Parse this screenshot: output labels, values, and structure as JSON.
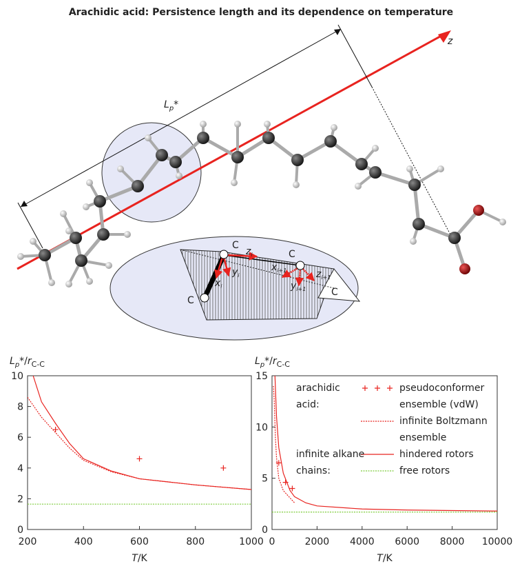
{
  "figure_title": "Arachidic acid: Persistence length and its dependence on temperature",
  "diagram": {
    "lp_label": [
      "L",
      "p",
      "*"
    ],
    "axis_label": "z",
    "atom_labels": [
      "C",
      "C",
      "C",
      "C"
    ],
    "frame_labels": [
      [
        "z",
        "i"
      ],
      [
        "y",
        "i"
      ],
      [
        "x",
        "i"
      ],
      [
        "x",
        "i+1"
      ],
      [
        "y",
        "i+1"
      ],
      [
        "z",
        "i+1"
      ]
    ]
  },
  "chart_data": [
    {
      "type": "line",
      "xlim": [
        200,
        1000
      ],
      "xticks": [
        200,
        400,
        600,
        800,
        1000
      ],
      "ylim": [
        0,
        10
      ],
      "yticks": [
        0,
        2,
        4,
        6,
        8,
        10
      ],
      "ylabel_parts": [
        "L",
        "p",
        "*/",
        "r",
        "C-C"
      ],
      "xlabel_parts": [
        "T",
        "/K"
      ],
      "series": [
        {
          "name": "pseudoconformer ensemble (vdW)",
          "color": "#e8231f",
          "style": "markers",
          "x": [
            300,
            600,
            900
          ],
          "values": [
            6.5,
            4.6,
            4.0
          ]
        },
        {
          "name": "infinite Boltzmann ensemble",
          "color": "#e8231f",
          "style": "dotted",
          "x": [
            200,
            250,
            300,
            350,
            400,
            500,
            600,
            700,
            800,
            900,
            1000
          ],
          "values": [
            8.6,
            7.3,
            6.3,
            5.3,
            4.5,
            3.75,
            3.3,
            3.1,
            2.9,
            2.75,
            2.6
          ]
        },
        {
          "name": "hindered rotors",
          "color": "#e8231f",
          "style": "solid",
          "x": [
            220,
            250,
            300,
            350,
            400,
            500,
            600,
            700,
            800,
            900,
            1000
          ],
          "values": [
            10,
            8.3,
            6.9,
            5.6,
            4.6,
            3.8,
            3.3,
            3.1,
            2.9,
            2.75,
            2.6
          ]
        },
        {
          "name": "free rotors",
          "color": "#7ccc3a",
          "style": "dotted",
          "x": [
            200,
            1000
          ],
          "values": [
            1.65,
            1.65
          ]
        }
      ]
    },
    {
      "type": "line",
      "xlim": [
        0,
        10000
      ],
      "xticks": [
        0,
        2000,
        4000,
        6000,
        8000,
        10000
      ],
      "ylim": [
        0,
        15
      ],
      "yticks": [
        0,
        5,
        10,
        15
      ],
      "ylabel_parts": [
        "L",
        "p",
        "*/",
        "r",
        "C-C"
      ],
      "xlabel_parts": [
        "T",
        "/K"
      ],
      "legend": "upper right",
      "legend_groups": [
        "arachidic acid:",
        "infinite alkane chains:"
      ],
      "series": [
        {
          "name": "pseudoconformer ensemble (vdW)",
          "color": "#e8231f",
          "style": "markers",
          "x": [
            300,
            600,
            900
          ],
          "values": [
            6.5,
            4.6,
            4.0
          ]
        },
        {
          "name": "infinite Boltzmann ensemble",
          "color": "#e8231f",
          "style": "dotted",
          "x": [
            60,
            100,
            150,
            200,
            300,
            500,
            1000
          ],
          "values": [
            14,
            12.5,
            9,
            7,
            5,
            3.8,
            2.6
          ]
        },
        {
          "name": "hindered rotors",
          "color": "#e8231f",
          "style": "solid",
          "x": [
            130,
            200,
            300,
            500,
            800,
            1000,
            1500,
            2000,
            4000,
            6000,
            8000,
            10000
          ],
          "values": [
            15,
            11,
            8,
            5.5,
            3.8,
            3.2,
            2.6,
            2.3,
            2.0,
            1.9,
            1.85,
            1.8
          ]
        },
        {
          "name": "free rotors",
          "color": "#7ccc3a",
          "style": "dotted",
          "x": [
            0,
            10000
          ],
          "values": [
            1.7,
            1.7
          ]
        }
      ]
    }
  ]
}
